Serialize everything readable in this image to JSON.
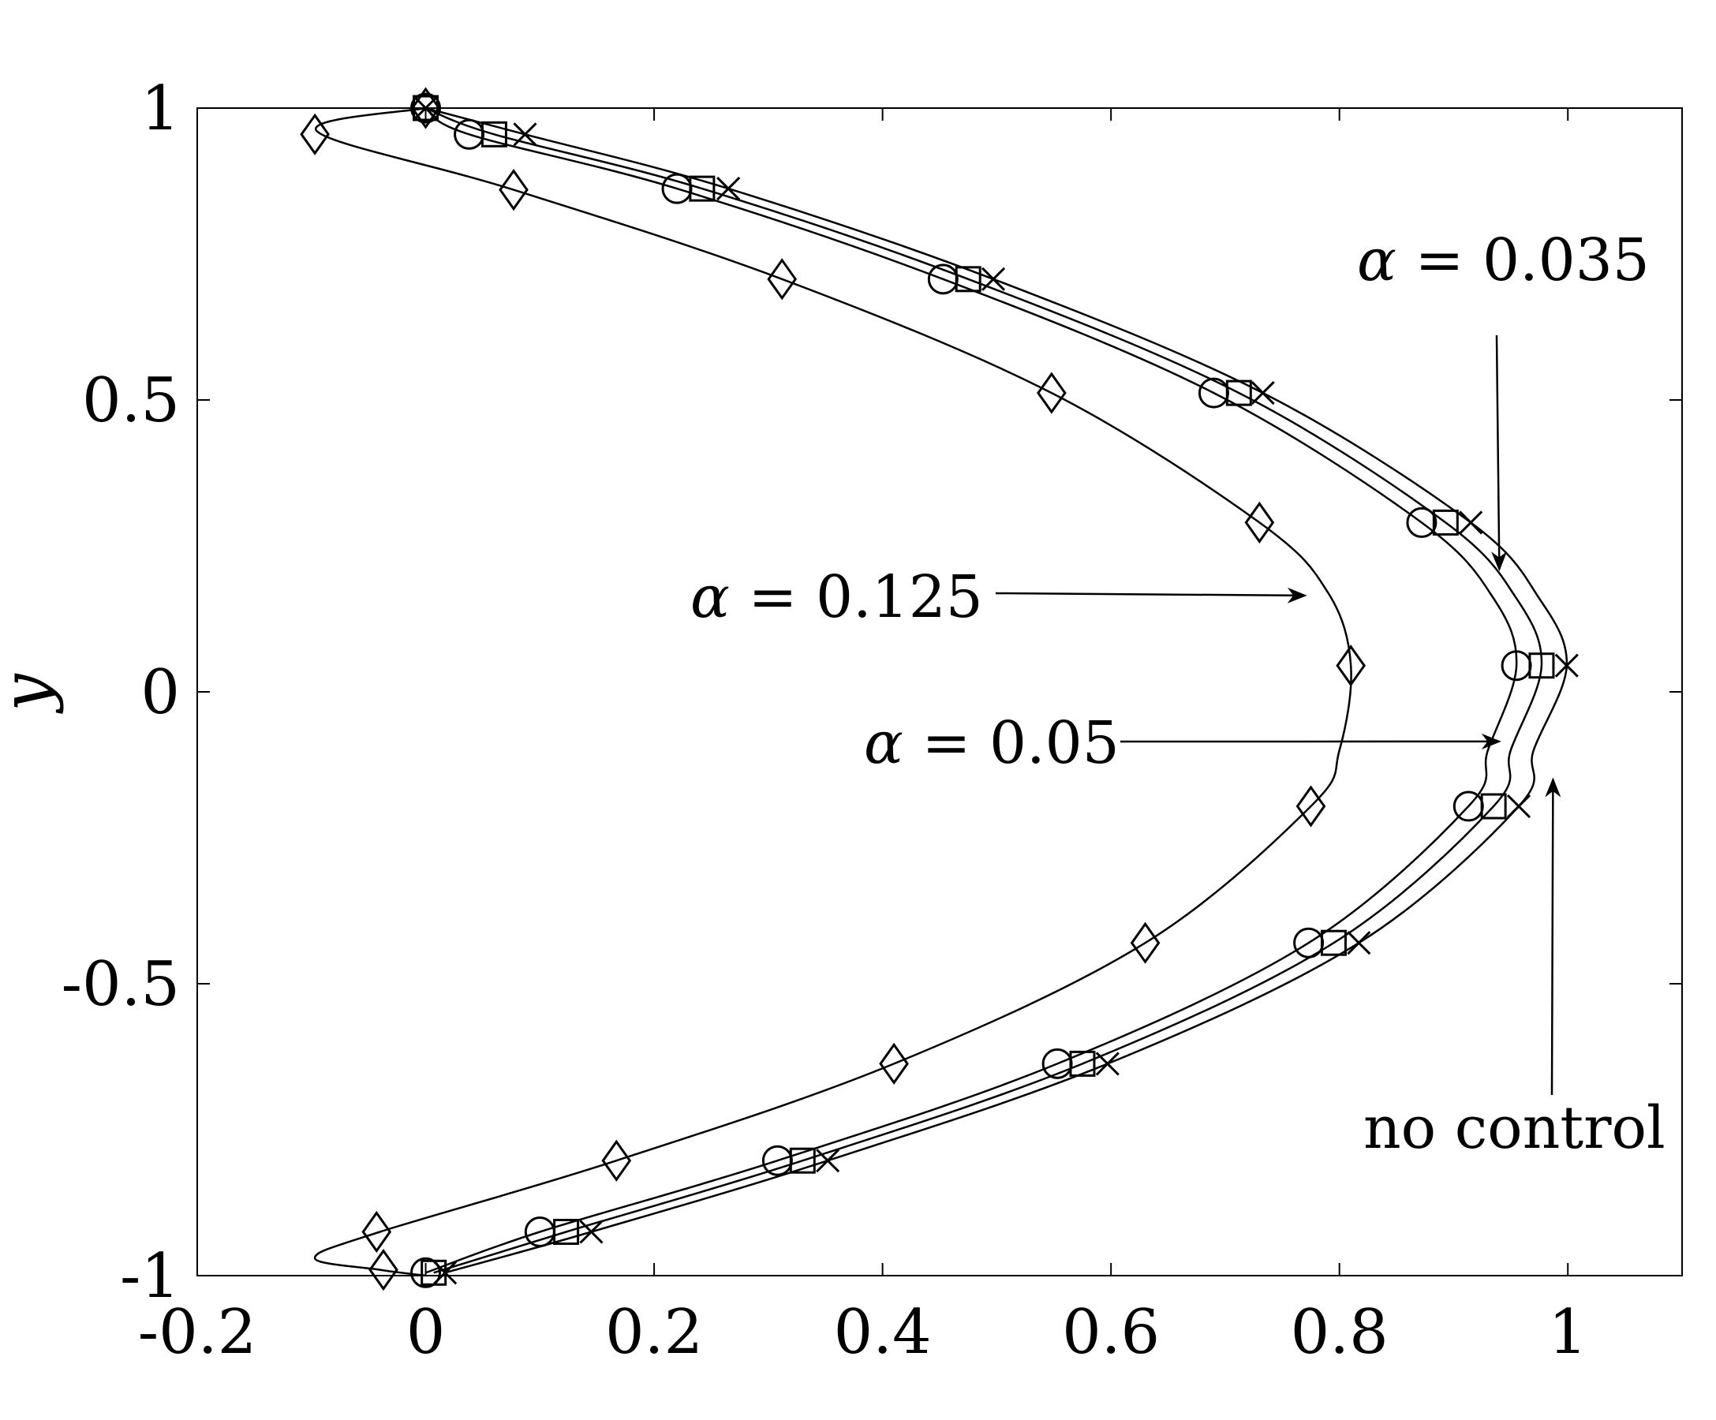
{
  "chart_data": {
    "type": "line",
    "title": "",
    "xlabel": "",
    "ylabel": "y",
    "xlim": [
      -0.2,
      1.1
    ],
    "ylim": [
      -1,
      1
    ],
    "xticks": [
      "-0.2",
      "0",
      "0.2",
      "0.4",
      "0.6",
      "0.8",
      "1"
    ],
    "xtick_values": [
      -0.2,
      0,
      0.2,
      0.4,
      0.6,
      0.8,
      1
    ],
    "yticks": [
      "1",
      "0.5",
      "0",
      "-0.5",
      "-1"
    ],
    "ytick_values": [
      1,
      0.5,
      0,
      -0.5,
      -1
    ],
    "grid": false,
    "series": [
      {
        "marker": "x",
        "curve": [
          [
            0,
            1
          ],
          [
            0.087,
            0.955
          ],
          [
            0.265,
            0.862
          ],
          [
            0.497,
            0.707
          ],
          [
            0.733,
            0.512
          ],
          [
            0.915,
            0.29
          ],
          [
            0.975,
            0.16
          ],
          [
            0.999,
            0.045
          ],
          [
            0.97,
            -0.1
          ],
          [
            0.957,
            -0.196
          ],
          [
            0.817,
            -0.43
          ],
          [
            0.597,
            -0.637
          ],
          [
            0.352,
            -0.803
          ],
          [
            0.145,
            -0.925
          ],
          [
            0.017,
            -0.995
          ]
        ],
        "markers": [
          [
            0,
            1
          ],
          [
            0.087,
            0.955
          ],
          [
            0.265,
            0.862
          ],
          [
            0.497,
            0.707
          ],
          [
            0.733,
            0.512
          ],
          [
            0.915,
            0.29
          ],
          [
            0.999,
            0.045
          ],
          [
            0.957,
            -0.196
          ],
          [
            0.817,
            -0.43
          ],
          [
            0.597,
            -0.637
          ],
          [
            0.352,
            -0.803
          ],
          [
            0.145,
            -0.925
          ],
          [
            0.017,
            -0.995
          ]
        ]
      },
      {
        "marker": "square",
        "curve": [
          [
            0,
            1
          ],
          [
            0.06,
            0.955
          ],
          [
            0.242,
            0.862
          ],
          [
            0.475,
            0.707
          ],
          [
            0.712,
            0.512
          ],
          [
            0.893,
            0.29
          ],
          [
            0.955,
            0.16
          ],
          [
            0.977,
            0.045
          ],
          [
            0.95,
            -0.1
          ],
          [
            0.935,
            -0.196
          ],
          [
            0.795,
            -0.43
          ],
          [
            0.575,
            -0.637
          ],
          [
            0.33,
            -0.803
          ],
          [
            0.123,
            -0.925
          ],
          [
            0.007,
            -0.995
          ]
        ],
        "markers": [
          [
            0,
            1
          ],
          [
            0.06,
            0.955
          ],
          [
            0.242,
            0.862
          ],
          [
            0.475,
            0.707
          ],
          [
            0.712,
            0.512
          ],
          [
            0.893,
            0.29
          ],
          [
            0.977,
            0.045
          ],
          [
            0.935,
            -0.196
          ],
          [
            0.795,
            -0.43
          ],
          [
            0.575,
            -0.637
          ],
          [
            0.33,
            -0.803
          ],
          [
            0.123,
            -0.925
          ],
          [
            0.007,
            -0.995
          ]
        ]
      },
      {
        "marker": "circle",
        "curve": [
          [
            0,
            1
          ],
          [
            0.038,
            0.955
          ],
          [
            0.22,
            0.862
          ],
          [
            0.453,
            0.707
          ],
          [
            0.69,
            0.512
          ],
          [
            0.872,
            0.29
          ],
          [
            0.935,
            0.16
          ],
          [
            0.955,
            0.045
          ],
          [
            0.93,
            -0.1
          ],
          [
            0.913,
            -0.196
          ],
          [
            0.773,
            -0.43
          ],
          [
            0.553,
            -0.637
          ],
          [
            0.308,
            -0.803
          ],
          [
            0.1,
            -0.925
          ],
          [
            0,
            -0.995
          ]
        ],
        "markers": [
          [
            0,
            1
          ],
          [
            0.038,
            0.955
          ],
          [
            0.22,
            0.862
          ],
          [
            0.453,
            0.707
          ],
          [
            0.69,
            0.512
          ],
          [
            0.872,
            0.29
          ],
          [
            0.955,
            0.045
          ],
          [
            0.913,
            -0.196
          ],
          [
            0.773,
            -0.43
          ],
          [
            0.553,
            -0.637
          ],
          [
            0.308,
            -0.803
          ],
          [
            0.1,
            -0.925
          ],
          [
            0,
            -0.995
          ]
        ]
      },
      {
        "marker": "diamond",
        "curve": [
          [
            0,
            1
          ],
          [
            -0.095,
            0.96
          ],
          [
            0.077,
            0.86
          ],
          [
            0.312,
            0.707
          ],
          [
            0.548,
            0.512
          ],
          [
            0.73,
            0.29
          ],
          [
            0.79,
            0.17
          ],
          [
            0.81,
            0.045
          ],
          [
            0.8,
            -0.1
          ],
          [
            0.775,
            -0.196
          ],
          [
            0.63,
            -0.43
          ],
          [
            0.41,
            -0.637
          ],
          [
            0.167,
            -0.803
          ],
          [
            -0.04,
            -0.925
          ],
          [
            -0.097,
            -0.97
          ],
          [
            -0.04,
            -0.99
          ],
          [
            0,
            -1
          ]
        ],
        "markers": [
          [
            0,
            1
          ],
          [
            -0.097,
            0.955
          ],
          [
            0.077,
            0.86
          ],
          [
            0.312,
            0.707
          ],
          [
            0.548,
            0.512
          ],
          [
            0.73,
            0.29
          ],
          [
            0.81,
            0.045
          ],
          [
            0.775,
            -0.196
          ],
          [
            0.63,
            -0.43
          ],
          [
            0.41,
            -0.637
          ],
          [
            0.167,
            -0.803
          ],
          [
            -0.043,
            -0.925
          ],
          [
            -0.037,
            -0.99
          ]
        ]
      }
    ],
    "annotations": [
      {
        "prefix": "α",
        "text": " = 0.035",
        "target": [
          0.94,
          0.21
        ],
        "arrow": "down"
      },
      {
        "prefix": "α",
        "text": " = 0.125",
        "target": [
          0.77,
          0.165
        ],
        "arrow": "right"
      },
      {
        "prefix": "α",
        "text": " = 0.05",
        "target": [
          0.94,
          -0.085
        ],
        "arrow": "right"
      },
      {
        "prefix": "",
        "text": "no control",
        "target": [
          0.987,
          -0.15
        ],
        "arrow": "up"
      }
    ]
  }
}
